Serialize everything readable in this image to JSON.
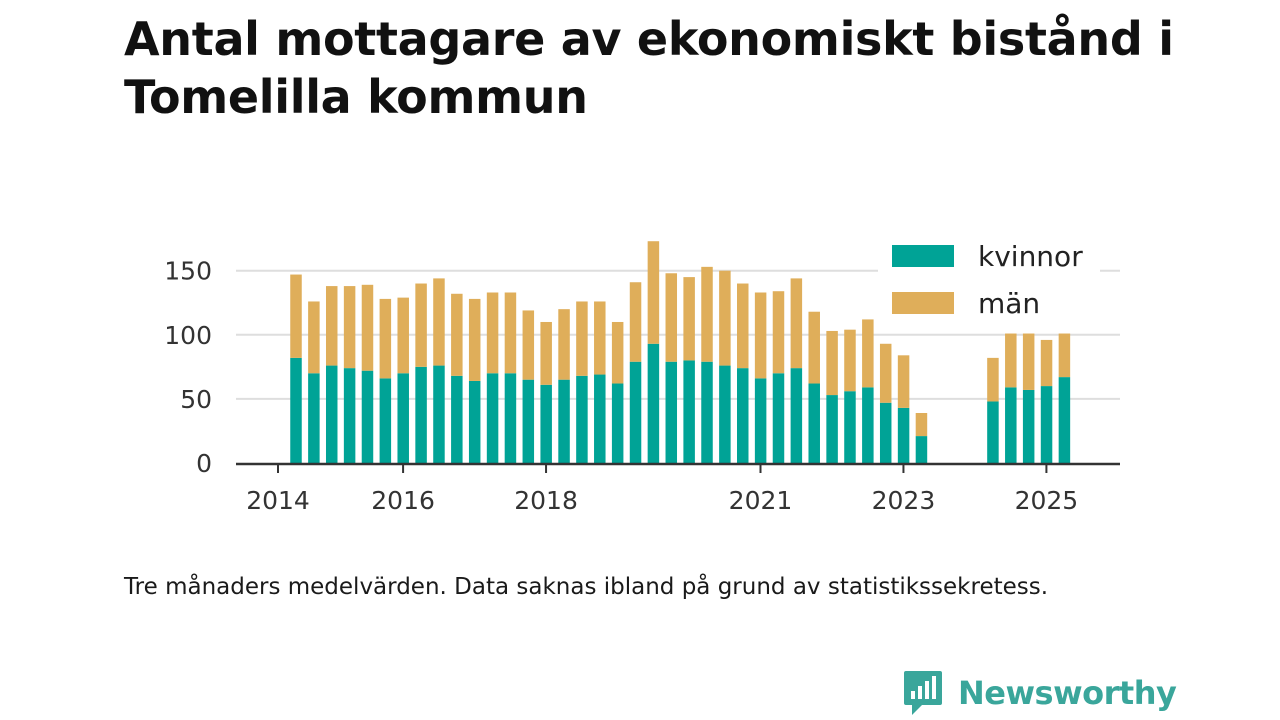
{
  "title": "Antal mottagare av ekonomiskt bistånd i Tomelilla kommun",
  "footnote": "Tre månaders medelvärden. Data saknas ibland på grund av statistikssekretess.",
  "brand": {
    "name": "Newsworthy",
    "icon": "newsworthy-logo-icon",
    "color": "#3aa69b"
  },
  "chart_data": {
    "type": "bar",
    "stacked": true,
    "ylim": [
      0,
      175
    ],
    "yticks": [
      0,
      50,
      100,
      150
    ],
    "xticks": [
      "2014",
      "2016",
      "2018",
      "2021",
      "2023",
      "2025"
    ],
    "xtick_at_bar": [
      0,
      7,
      15,
      27,
      35,
      43
    ],
    "grid": true,
    "legend_position": "top-right",
    "colors": {
      "kvinnor": "#00a396",
      "män": "#dfae5a"
    },
    "series": [
      {
        "name": "kvinnor",
        "values": [
          82,
          70,
          76,
          74,
          72,
          66,
          70,
          75,
          76,
          68,
          64,
          70,
          70,
          65,
          61,
          65,
          68,
          69,
          62,
          79,
          93,
          79,
          80,
          79,
          76,
          74,
          66,
          70,
          74,
          62,
          53,
          56,
          59,
          47,
          43,
          21,
          null,
          null,
          null,
          48,
          59,
          57,
          60,
          67
        ]
      },
      {
        "name": "män",
        "values": [
          65,
          56,
          62,
          64,
          67,
          62,
          59,
          65,
          68,
          64,
          64,
          63,
          63,
          54,
          49,
          55,
          58,
          57,
          48,
          62,
          80,
          69,
          65,
          74,
          74,
          66,
          67,
          64,
          70,
          56,
          50,
          48,
          53,
          46,
          41,
          18,
          null,
          null,
          null,
          34,
          42,
          44,
          36,
          34
        ]
      }
    ]
  }
}
